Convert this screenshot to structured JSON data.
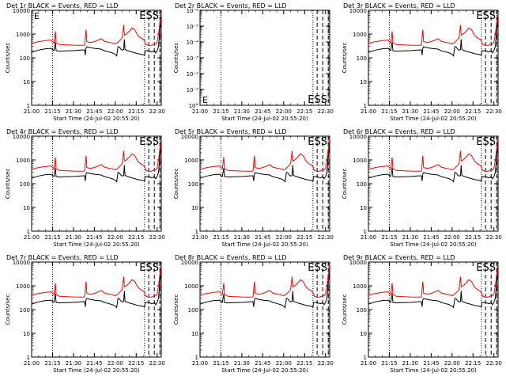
{
  "figure": {
    "xlabel": "Start Time (24-Jul-02 20:55:20)",
    "ylabel": "Counts/sec"
  },
  "chart_data": [
    {
      "type": "line",
      "title": "Det 1r BLACK = Events, RED = LLD",
      "corner_label": "E",
      "flag_label": "ESS",
      "ylim": [
        1,
        10000
      ],
      "yscale": "log",
      "y_ticks": [
        "1",
        "10",
        "100",
        "1000",
        "10000"
      ],
      "x_ticks": [
        "21:00",
        "21:15",
        "21:30",
        "21:45",
        "22:00",
        "22:15",
        "22:30"
      ],
      "xlim_minutes": [
        0,
        93
      ],
      "dotted_lines_minutes": [
        15,
        81
      ],
      "dashed_lines_minutes": [
        84,
        88,
        92
      ],
      "series": [
        {
          "name": "LLD",
          "color": "#ff0000",
          "shape": "lld"
        },
        {
          "name": "Events",
          "color": "#000000",
          "shape": "events"
        }
      ]
    },
    {
      "type": "line",
      "title": "Det 2r BLACK = Events, RED = LLD",
      "corner_label": "E",
      "flag_label": "ESS",
      "ylim": [
        1,
        1e-06
      ],
      "yscale": "log",
      "y_ticks": [
        "10°",
        "10⁻¹",
        "10⁻²",
        "10⁻³",
        "10⁻⁴",
        "10⁻⁵",
        "10⁻⁶"
      ],
      "x_ticks": [
        "21:00",
        "21:15",
        "21:30",
        "21:45",
        "22:00",
        "22:15",
        "22:30"
      ],
      "xlim_minutes": [
        0,
        93
      ],
      "dotted_lines_minutes": [
        15,
        81
      ],
      "dashed_lines_minutes": [
        84,
        88,
        92
      ],
      "series": []
    },
    {
      "type": "line",
      "title": "Det 3r BLACK = Events, RED = LLD",
      "corner_label": "",
      "flag_label": "ESS",
      "ylim": [
        1,
        10000
      ],
      "yscale": "log",
      "y_ticks": [
        "1",
        "10",
        "100",
        "1000",
        "10000"
      ],
      "x_ticks": [
        "21:00",
        "21:15",
        "21:30",
        "21:45",
        "22:00",
        "22:15",
        "22:30"
      ],
      "xlim_minutes": [
        0,
        93
      ],
      "dotted_lines_minutes": [
        15,
        81
      ],
      "dashed_lines_minutes": [
        84,
        88,
        92
      ],
      "series": [
        {
          "name": "LLD",
          "color": "#ff0000",
          "shape": "lld"
        },
        {
          "name": "Events",
          "color": "#000000",
          "shape": "events"
        }
      ]
    },
    {
      "type": "line",
      "title": "Det 4r BLACK = Events, RED = LLD",
      "corner_label": "",
      "flag_label": "ESS",
      "ylim": [
        1,
        10000
      ],
      "yscale": "log",
      "y_ticks": [
        "1",
        "10",
        "100",
        "1000",
        "10000"
      ],
      "x_ticks": [
        "21:00",
        "21:15",
        "21:30",
        "21:45",
        "22:00",
        "22:15",
        "22:30"
      ],
      "xlim_minutes": [
        0,
        93
      ],
      "dotted_lines_minutes": [
        15,
        81
      ],
      "dashed_lines_minutes": [
        84,
        88,
        92
      ],
      "series": [
        {
          "name": "LLD",
          "color": "#ff0000",
          "shape": "lld"
        },
        {
          "name": "Events",
          "color": "#000000",
          "shape": "events"
        }
      ]
    },
    {
      "type": "line",
      "title": "Det 5r BLACK = Events, RED = LLD",
      "corner_label": "",
      "flag_label": "ESS",
      "ylim": [
        1,
        10000
      ],
      "yscale": "log",
      "y_ticks": [
        "1",
        "10",
        "100",
        "1000",
        "10000"
      ],
      "x_ticks": [
        "21:00",
        "21:15",
        "21:30",
        "21:45",
        "22:00",
        "22:15",
        "22:30"
      ],
      "xlim_minutes": [
        0,
        93
      ],
      "dotted_lines_minutes": [
        15,
        81
      ],
      "dashed_lines_minutes": [
        84,
        88,
        92
      ],
      "series": [
        {
          "name": "LLD",
          "color": "#ff0000",
          "shape": "lld"
        },
        {
          "name": "Events",
          "color": "#000000",
          "shape": "events"
        }
      ]
    },
    {
      "type": "line",
      "title": "Det 6r BLACK = Events, RED = LLD",
      "corner_label": "",
      "flag_label": "ESS",
      "ylim": [
        1,
        10000
      ],
      "yscale": "log",
      "y_ticks": [
        "1",
        "10",
        "100",
        "1000",
        "10000"
      ],
      "x_ticks": [
        "21:00",
        "21:15",
        "21:30",
        "21:45",
        "22:00",
        "22:15",
        "22:30"
      ],
      "xlim_minutes": [
        0,
        93
      ],
      "dotted_lines_minutes": [
        15,
        81
      ],
      "dashed_lines_minutes": [
        84,
        88,
        92
      ],
      "series": [
        {
          "name": "LLD",
          "color": "#ff0000",
          "shape": "lld"
        },
        {
          "name": "Events",
          "color": "#000000",
          "shape": "events"
        }
      ]
    },
    {
      "type": "line",
      "title": "Det 7r BLACK = Events, RED = LLD",
      "corner_label": "",
      "flag_label": "ESS",
      "ylim": [
        1,
        10000
      ],
      "yscale": "log",
      "y_ticks": [
        "1",
        "10",
        "100",
        "1000",
        "10000"
      ],
      "x_ticks": [
        "21:00",
        "21:15",
        "21:30",
        "21:45",
        "22:00",
        "22:15",
        "22:30"
      ],
      "xlim_minutes": [
        0,
        93
      ],
      "dotted_lines_minutes": [
        15,
        81
      ],
      "dashed_lines_minutes": [
        84,
        88,
        92
      ],
      "series": [
        {
          "name": "LLD",
          "color": "#ff0000",
          "shape": "lld"
        },
        {
          "name": "Events",
          "color": "#000000",
          "shape": "events"
        }
      ]
    },
    {
      "type": "line",
      "title": "Det 8r BLACK = Events, RED = LLD",
      "corner_label": "",
      "flag_label": "ESS",
      "ylim": [
        1,
        10000
      ],
      "yscale": "log",
      "y_ticks": [
        "1",
        "10",
        "100",
        "1000",
        "10000"
      ],
      "x_ticks": [
        "21:00",
        "21:15",
        "21:30",
        "21:45",
        "22:00",
        "22:15",
        "22:30"
      ],
      "xlim_minutes": [
        0,
        93
      ],
      "dotted_lines_minutes": [
        15,
        81
      ],
      "dashed_lines_minutes": [
        84,
        88,
        92
      ],
      "series": [
        {
          "name": "LLD",
          "color": "#ff0000",
          "shape": "lld"
        },
        {
          "name": "Events",
          "color": "#000000",
          "shape": "events"
        }
      ]
    },
    {
      "type": "line",
      "title": "Det 9r BLACK = Events, RED = LLD",
      "corner_label": "",
      "flag_label": "ESS",
      "ylim": [
        1,
        10000
      ],
      "yscale": "log",
      "y_ticks": [
        "1",
        "10",
        "100",
        "1000",
        "10000"
      ],
      "x_ticks": [
        "21:00",
        "21:15",
        "21:30",
        "21:45",
        "22:00",
        "22:15",
        "22:30"
      ],
      "xlim_minutes": [
        0,
        93
      ],
      "dotted_lines_minutes": [
        15,
        81
      ],
      "dashed_lines_minutes": [
        84,
        88,
        92
      ],
      "series": [
        {
          "name": "LLD",
          "color": "#ff0000",
          "shape": "lld"
        },
        {
          "name": "Events",
          "color": "#000000",
          "shape": "events"
        }
      ]
    }
  ],
  "curve_shapes": {
    "lld": [
      [
        0,
        400
      ],
      [
        5,
        480
      ],
      [
        10,
        530
      ],
      [
        14,
        560
      ],
      [
        15,
        480
      ],
      [
        16,
        420
      ],
      [
        17,
        1300
      ],
      [
        17.6,
        420
      ],
      [
        20,
        360
      ],
      [
        25,
        350
      ],
      [
        30,
        340
      ],
      [
        35,
        335
      ],
      [
        38,
        340
      ],
      [
        39,
        1500
      ],
      [
        39.6,
        480
      ],
      [
        42,
        440
      ],
      [
        45,
        480
      ],
      [
        48,
        560
      ],
      [
        50,
        640
      ],
      [
        52,
        500
      ],
      [
        55,
        450
      ],
      [
        58,
        420
      ],
      [
        60,
        380
      ],
      [
        62,
        450
      ],
      [
        64,
        600
      ],
      [
        65,
        700
      ],
      [
        66,
        2400
      ],
      [
        66.6,
        900
      ],
      [
        68,
        1000
      ],
      [
        70,
        1300
      ],
      [
        72,
        1800
      ],
      [
        74,
        1500
      ],
      [
        76,
        900
      ],
      [
        78,
        700
      ],
      [
        80,
        600
      ],
      [
        81,
        520
      ],
      [
        82,
        360
      ],
      [
        84,
        330
      ],
      [
        86,
        340
      ],
      [
        88,
        380
      ],
      [
        89,
        380
      ],
      [
        90,
        450
      ],
      [
        91,
        1000
      ],
      [
        92,
        3000
      ],
      [
        93,
        8000
      ]
    ],
    "events": [
      [
        0,
        170
      ],
      [
        5,
        210
      ],
      [
        10,
        240
      ],
      [
        14,
        250
      ],
      [
        15,
        220
      ],
      [
        16,
        200
      ],
      [
        17,
        450
      ],
      [
        17.6,
        200
      ],
      [
        20,
        190
      ],
      [
        25,
        195
      ],
      [
        30,
        200
      ],
      [
        35,
        210
      ],
      [
        38,
        215
      ],
      [
        38.5,
        130
      ],
      [
        39,
        260
      ],
      [
        39.6,
        290
      ],
      [
        42,
        270
      ],
      [
        45,
        250
      ],
      [
        48,
        240
      ],
      [
        50,
        230
      ],
      [
        52,
        200
      ],
      [
        55,
        180
      ],
      [
        58,
        160
      ],
      [
        60,
        140
      ],
      [
        61,
        120
      ],
      [
        62,
        300
      ],
      [
        63,
        280
      ],
      [
        64,
        230
      ],
      [
        65,
        210
      ],
      [
        66,
        220
      ],
      [
        66.5,
        600
      ],
      [
        67,
        220
      ],
      [
        70,
        190
      ],
      [
        73,
        170
      ],
      [
        76,
        150
      ],
      [
        79,
        140
      ],
      [
        81,
        130
      ],
      [
        81.5,
        200
      ],
      [
        83,
        200
      ],
      [
        85,
        190
      ],
      [
        86,
        175
      ],
      [
        87,
        180
      ],
      [
        88,
        200
      ],
      [
        89,
        160
      ],
      [
        90,
        200
      ],
      [
        91,
        300
      ],
      [
        92,
        1500
      ],
      [
        93,
        4000
      ]
    ]
  }
}
